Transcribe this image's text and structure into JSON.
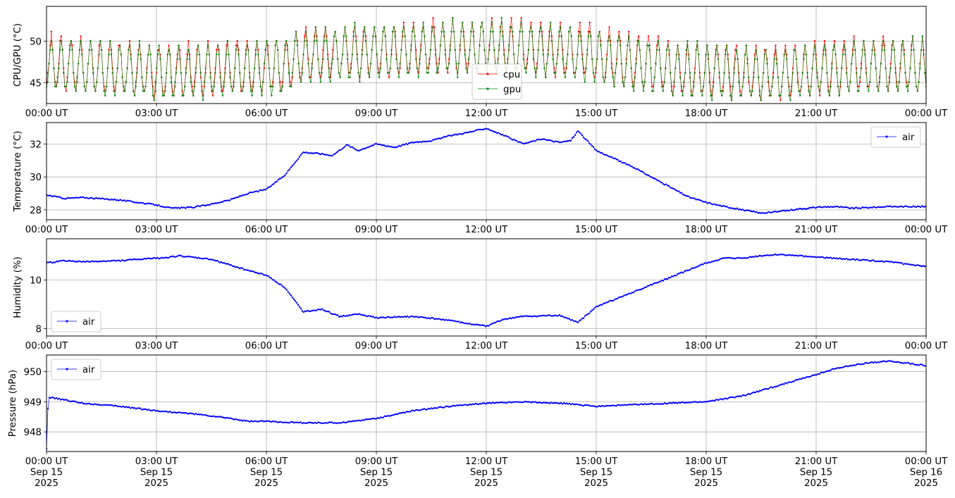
{
  "chart_data": [
    {
      "type": "line",
      "ylabel": "CPU/GPU (°C)",
      "ylim": [
        42.5,
        54.2
      ],
      "yticks": [
        45,
        50
      ],
      "xlim": [
        0,
        24
      ],
      "xtick_labels": [
        "00:00 UT",
        "03:00 UT",
        "06:00 UT",
        "09:00 UT",
        "12:00 UT",
        "15:00 UT",
        "18:00 UT",
        "21:00 UT",
        "00:00 UT"
      ],
      "grid": true,
      "legend_placement": "bottom-center",
      "series": [
        {
          "name": "cpu",
          "color": "#ff0000",
          "profile_x": [
            0,
            1,
            3,
            4.5,
            6.5,
            7,
            9,
            11,
            12,
            14.5,
            16,
            17.5,
            19.5,
            21,
            22.5,
            24
          ],
          "profile_y": [
            47.3,
            47,
            46.2,
            46.5,
            47,
            48.3,
            48.7,
            49.2,
            49.3,
            48.6,
            47.3,
            46.5,
            46,
            46.5,
            47,
            47
          ]
        },
        {
          "name": "gpu",
          "color": "#008000",
          "profile_x": [
            0,
            1,
            3,
            4.5,
            6.5,
            7,
            9,
            11,
            12,
            14.5,
            16,
            17.5,
            19.5,
            21,
            22.5,
            24
          ],
          "profile_y": [
            47,
            46.8,
            46,
            46.2,
            46.8,
            48,
            48.5,
            49,
            49.1,
            48.4,
            47,
            46.2,
            45.8,
            46.2,
            46.8,
            46.8
          ]
        }
      ]
    },
    {
      "type": "line",
      "ylabel": "Temperature (°C)",
      "ylim": [
        27.4,
        33.3
      ],
      "yticks": [
        28,
        30,
        32
      ],
      "xlim": [
        0,
        24
      ],
      "xtick_labels": [
        "00:00 UT",
        "03:00 UT",
        "06:00 UT",
        "09:00 UT",
        "12:00 UT",
        "15:00 UT",
        "18:00 UT",
        "21:00 UT",
        "00:00 UT"
      ],
      "grid": true,
      "legend_placement": "top-right",
      "series": [
        {
          "name": "air",
          "color": "#0000ff",
          "x": [
            0,
            0.5,
            1,
            2,
            2.5,
            3,
            3.4,
            4,
            4.5,
            5,
            5.5,
            6,
            6.5,
            7,
            7.5,
            7.8,
            8.2,
            8.5,
            9,
            9.5,
            10,
            10.5,
            11,
            11.5,
            12,
            12.5,
            13,
            13.5,
            14,
            14.3,
            14.5,
            15,
            15.5,
            16,
            16.5,
            17,
            17.5,
            18,
            18.5,
            19,
            19.5,
            20,
            20.5,
            21,
            21.5,
            22,
            22.5,
            23,
            23.5,
            24
          ],
          "y": [
            28.9,
            28.7,
            28.75,
            28.6,
            28.45,
            28.3,
            28.1,
            28.15,
            28.35,
            28.6,
            29.0,
            29.25,
            30.1,
            31.5,
            31.4,
            31.3,
            31.95,
            31.6,
            32.0,
            31.8,
            32.1,
            32.2,
            32.5,
            32.7,
            32.95,
            32.5,
            32.0,
            32.3,
            32.1,
            32.2,
            32.8,
            31.6,
            31.1,
            30.6,
            30.0,
            29.4,
            28.8,
            28.45,
            28.2,
            28.0,
            27.8,
            27.9,
            28.05,
            28.15,
            28.2,
            28.1,
            28.15,
            28.2,
            28.2,
            28.2
          ]
        }
      ]
    },
    {
      "type": "line",
      "ylabel": "Humidity (%)",
      "ylim": [
        7.7,
        11.7
      ],
      "yticks": [
        8,
        10
      ],
      "xlim": [
        0,
        24
      ],
      "xtick_labels": [
        "00:00 UT",
        "03:00 UT",
        "06:00 UT",
        "09:00 UT",
        "12:00 UT",
        "15:00 UT",
        "18:00 UT",
        "21:00 UT",
        "00:00 UT"
      ],
      "grid": true,
      "legend_placement": "bottom-left",
      "series": [
        {
          "name": "air",
          "color": "#0000ff",
          "x": [
            0,
            0.5,
            1,
            2,
            3,
            3.4,
            3.6,
            4.5,
            5.5,
            6,
            6.5,
            7,
            7.5,
            8,
            8.5,
            9,
            10,
            11,
            11.5,
            12,
            12.5,
            13,
            14,
            14.5,
            15,
            15.5,
            16,
            17,
            17.5,
            18,
            18.5,
            19,
            19.5,
            20,
            21,
            22,
            23,
            24
          ],
          "y": [
            10.7,
            10.8,
            10.75,
            10.8,
            10.9,
            10.95,
            11.0,
            10.85,
            10.4,
            10.2,
            9.7,
            8.7,
            8.8,
            8.5,
            8.6,
            8.45,
            8.5,
            8.35,
            8.2,
            8.1,
            8.4,
            8.5,
            8.55,
            8.25,
            8.9,
            9.2,
            9.5,
            10.1,
            10.4,
            10.7,
            10.9,
            10.9,
            11.0,
            11.05,
            10.95,
            10.85,
            10.75,
            10.55
          ]
        }
      ]
    },
    {
      "type": "line",
      "ylabel": "Pressure (hPa)",
      "ylim": [
        947.35,
        950.55
      ],
      "yticks": [
        948,
        949,
        950
      ],
      "xlim": [
        0,
        24
      ],
      "xtick_labels": [
        "00:00 UT\nSep 15\n2025",
        "03:00 UT\nSep 15\n2025",
        "06:00 UT\nSep 15\n2025",
        "09:00 UT\nSep 15\n2025",
        "12:00 UT\nSep 15\n2025",
        "15:00 UT\nSep 15\n2025",
        "18:00 UT\nSep 15\n2025",
        "21:00 UT\nSep 15\n2025",
        "00:00 UT\nSep 16\n2025"
      ],
      "grid": true,
      "legend_placement": "top-left",
      "series": [
        {
          "name": "air",
          "color": "#0000ff",
          "x": [
            0,
            0.05,
            0.3,
            1,
            2,
            3,
            4,
            5,
            5.5,
            6,
            7,
            8,
            9,
            10,
            11,
            12,
            13,
            14,
            15,
            16,
            17,
            18,
            19,
            20,
            21,
            21.5,
            22,
            22.5,
            23,
            24
          ],
          "y": [
            947.45,
            949.15,
            949.1,
            948.95,
            948.85,
            948.7,
            948.6,
            948.45,
            948.35,
            948.35,
            948.3,
            948.3,
            948.45,
            948.7,
            948.85,
            948.95,
            949.0,
            948.95,
            948.85,
            948.9,
            948.95,
            949.0,
            949.2,
            949.55,
            949.9,
            950.1,
            950.2,
            950.3,
            950.35,
            950.2
          ]
        }
      ]
    }
  ]
}
